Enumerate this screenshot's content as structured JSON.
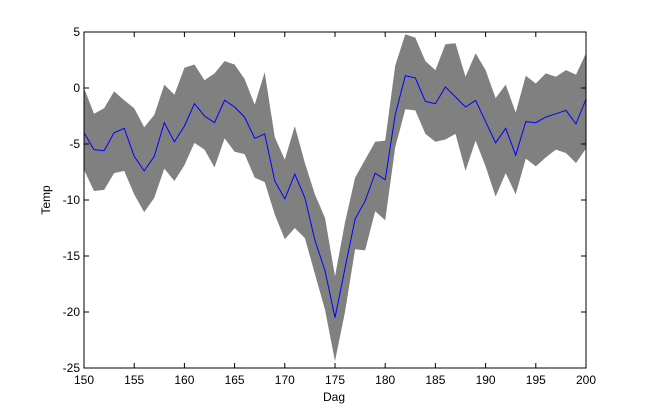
{
  "chart_data": {
    "type": "area",
    "title": "",
    "xlabel": "Dag",
    "ylabel": "Temp",
    "xlim": [
      150,
      200
    ],
    "ylim": [
      -25,
      5
    ],
    "xticks": [
      150,
      155,
      160,
      165,
      170,
      175,
      180,
      185,
      190,
      195,
      200
    ],
    "yticks": [
      -25,
      -20,
      -15,
      -10,
      -5,
      0,
      5
    ],
    "grid": false,
    "legend": "none",
    "colors": {
      "line": "#0000ff",
      "band": "#808080",
      "axes": "#000000"
    },
    "x": [
      150,
      151,
      152,
      153,
      154,
      155,
      156,
      157,
      158,
      159,
      160,
      161,
      162,
      163,
      164,
      165,
      166,
      167,
      168,
      169,
      170,
      171,
      172,
      173,
      174,
      175,
      176,
      177,
      178,
      179,
      180,
      181,
      182,
      183,
      184,
      185,
      186,
      187,
      188,
      189,
      190,
      191,
      192,
      193,
      194,
      195,
      196,
      197,
      198,
      199,
      200
    ],
    "series": [
      {
        "role": "mean",
        "values": [
          -4.0,
          -5.5,
          -5.6,
          -4.0,
          -3.6,
          -6.1,
          -7.4,
          -6.1,
          -3.1,
          -4.8,
          -3.4,
          -1.4,
          -2.5,
          -3.1,
          -1.1,
          -1.7,
          -2.6,
          -4.5,
          -4.1,
          -8.3,
          -9.9,
          -7.7,
          -9.8,
          -13.6,
          -16.3,
          -20.5,
          -16.1,
          -11.7,
          -10.1,
          -7.6,
          -8.2,
          -2.4,
          1.1,
          0.9,
          -1.2,
          -1.4,
          0.1,
          -0.8,
          -1.7,
          -1.1,
          -3.0,
          -4.9,
          -3.6,
          -6.0,
          -3.0,
          -3.1,
          -2.6,
          -2.3,
          -2.0,
          -3.2,
          -1.0
        ]
      },
      {
        "role": "upper",
        "values": [
          0.0,
          -2.3,
          -1.8,
          -0.3,
          -1.1,
          -1.8,
          -3.5,
          -2.4,
          0.3,
          -0.6,
          1.8,
          2.1,
          0.7,
          1.3,
          2.4,
          2.1,
          0.8,
          -1.5,
          1.4,
          -4.4,
          -6.4,
          -3.4,
          -6.7,
          -9.5,
          -11.6,
          -16.8,
          -12.0,
          -8.0,
          -6.4,
          -4.8,
          -4.7,
          2.0,
          4.8,
          4.5,
          2.4,
          1.6,
          3.9,
          4.0,
          1.0,
          3.1,
          1.6,
          -0.9,
          0.3,
          -2.2,
          1.1,
          0.4,
          1.3,
          1.0,
          1.6,
          1.2,
          3.1
        ]
      },
      {
        "role": "lower",
        "values": [
          -7.3,
          -9.2,
          -9.1,
          -7.6,
          -7.4,
          -9.5,
          -11.1,
          -9.8,
          -7.2,
          -8.3,
          -6.9,
          -4.9,
          -5.5,
          -7.1,
          -4.5,
          -5.7,
          -5.9,
          -8.0,
          -8.4,
          -11.3,
          -13.5,
          -12.5,
          -13.4,
          -16.6,
          -19.8,
          -24.4,
          -20.0,
          -14.4,
          -14.5,
          -11.0,
          -11.8,
          -5.3,
          -1.9,
          -2.0,
          -4.1,
          -4.8,
          -4.6,
          -4.1,
          -7.4,
          -4.7,
          -7.0,
          -9.7,
          -7.6,
          -9.5,
          -6.3,
          -7.0,
          -6.2,
          -5.5,
          -5.8,
          -6.7,
          -5.4
        ]
      }
    ]
  }
}
